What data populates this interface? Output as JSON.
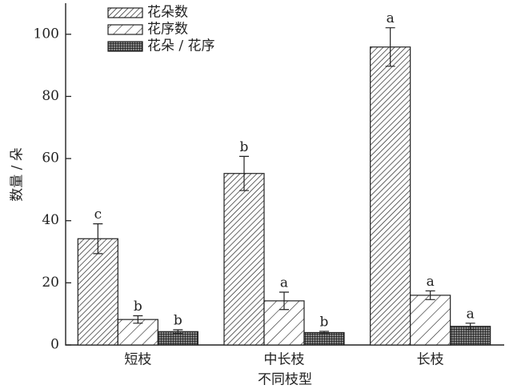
{
  "chart_data": {
    "type": "bar",
    "y_label": "数量 / 朵",
    "x_label": "不同枝型",
    "categories": [
      "短枝",
      "中长枝",
      "长枝"
    ],
    "series": [
      {
        "name": "花朵数",
        "hatch": "dense",
        "color": "#222222",
        "values": [
          34.2,
          55.2,
          95.9
        ],
        "errors": [
          4.8,
          5.5,
          6.2
        ],
        "letters": [
          "c",
          "b",
          "a"
        ]
      },
      {
        "name": "花序数",
        "hatch": "sparse",
        "color": "#222222",
        "values": [
          8.2,
          14.2,
          16
        ],
        "errors": [
          1.2,
          2.8,
          1.4
        ],
        "letters": [
          "b",
          "a",
          "a"
        ]
      },
      {
        "name": "花朵 / 花序",
        "hatch": "grid",
        "color": "#222222",
        "values": [
          4.3,
          4.0,
          6.0
        ],
        "errors": [
          0.6,
          0.4,
          1.0
        ],
        "letters": [
          "b",
          "b",
          "a"
        ]
      }
    ],
    "ylim": [
      0,
      110
    ],
    "yticks": [
      0,
      20,
      40,
      60,
      80,
      100
    ]
  }
}
